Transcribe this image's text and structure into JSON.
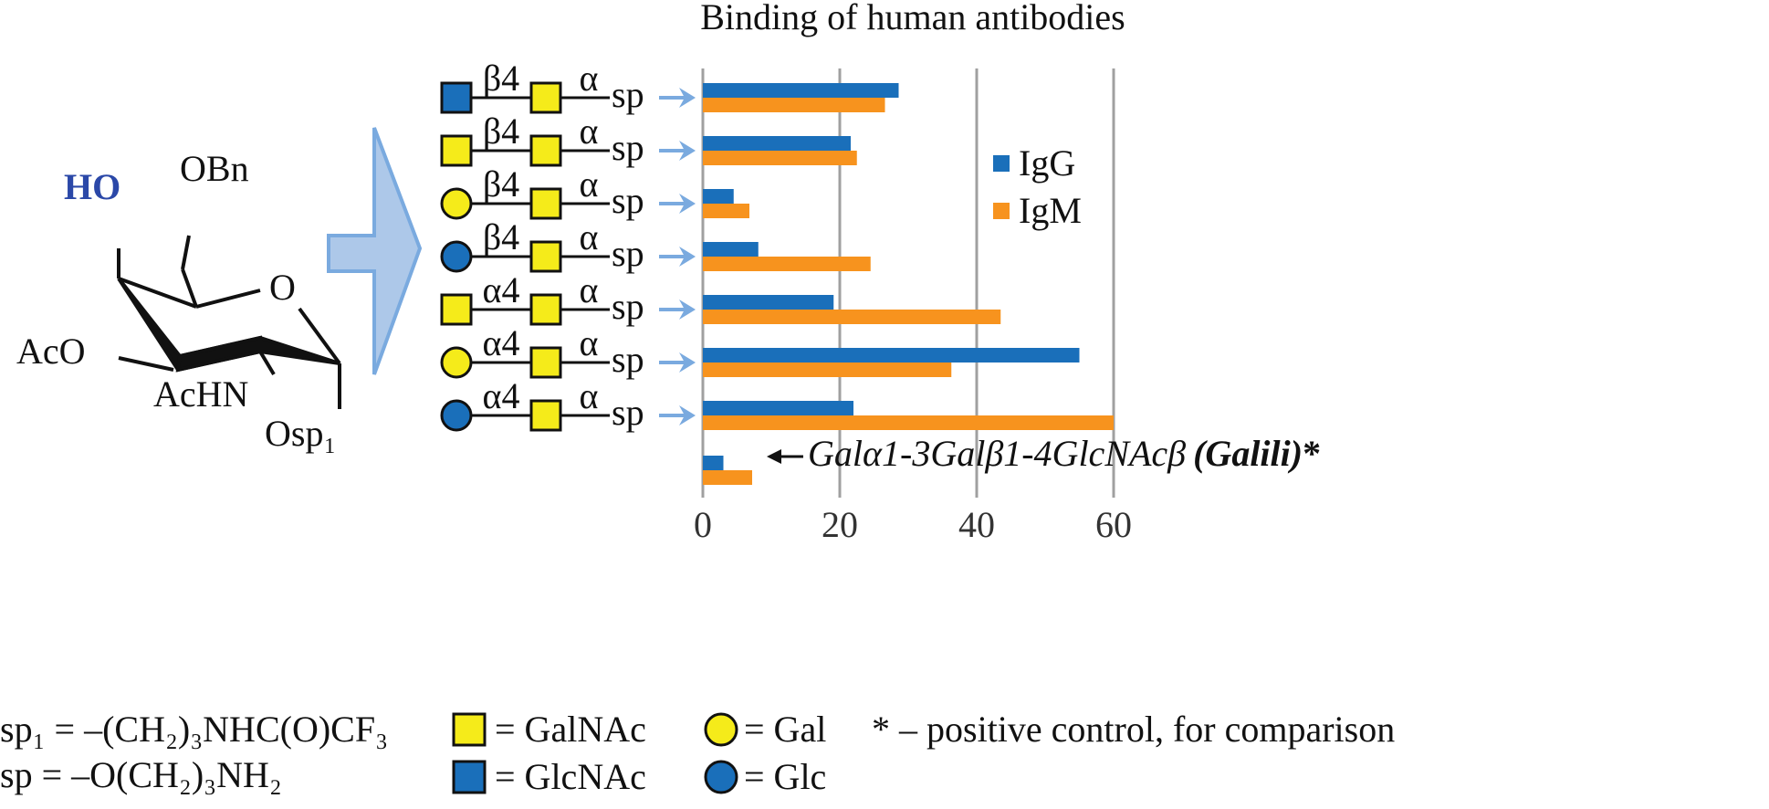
{
  "molecule": {
    "hydroxyl": "HO",
    "obn": "OBn",
    "ring_o": "O",
    "aco": "AcO",
    "achn": "AcHN",
    "osp": "Osp₁"
  },
  "colors": {
    "igg": "#1a6fba",
    "igm": "#f7931e",
    "galnac": "#f5eb1a",
    "glcnac": "#1a6fba",
    "arrow": "#7aaadf",
    "big_arrow": "#adc8e9",
    "hydroxyl": "#2b48a8",
    "grid": "#a0a0a0"
  },
  "chart_data": {
    "type": "bar",
    "orientation": "horizontal",
    "title": "Binding of human antibodies",
    "xlim": [
      0,
      60
    ],
    "xticks": [
      "0",
      "20",
      "40",
      "60"
    ],
    "grid": true,
    "legend_placement": "top-right",
    "categories": [
      {
        "first": "GlcNAc",
        "shape": "square",
        "first_color": "#1a6fba",
        "linkage": "β4",
        "anomer": "α",
        "spacer": "sp"
      },
      {
        "first": "GalNAc",
        "shape": "square",
        "first_color": "#f5eb1a",
        "linkage": "β4",
        "anomer": "α",
        "spacer": "sp"
      },
      {
        "first": "Gal",
        "shape": "circle",
        "first_color": "#f5eb1a",
        "linkage": "β4",
        "anomer": "α",
        "spacer": "sp"
      },
      {
        "first": "Glc",
        "shape": "circle",
        "first_color": "#1a6fba",
        "linkage": "β4",
        "anomer": "α",
        "spacer": "sp"
      },
      {
        "first": "GalNAc",
        "shape": "square",
        "first_color": "#f5eb1a",
        "linkage": "α4",
        "anomer": "α",
        "spacer": "sp"
      },
      {
        "first": "Gal",
        "shape": "circle",
        "first_color": "#f5eb1a",
        "linkage": "α4",
        "anomer": "α",
        "spacer": "sp"
      },
      {
        "first": "Glc",
        "shape": "circle",
        "first_color": "#1a6fba",
        "linkage": "α4",
        "anomer": "α",
        "spacer": "sp"
      },
      {
        "label": "Galα1-3Galβ1-4GlcNAcβ",
        "label_bold": "(Galili)",
        "label_suffix": "*"
      }
    ],
    "series": [
      {
        "name": "IgG",
        "color": "#1a6fba",
        "values": [
          28.6,
          21.6,
          4.5,
          8.1,
          19.1,
          55.0,
          22.0,
          3.0
        ]
      },
      {
        "name": "IgM",
        "color": "#f7931e",
        "values": [
          26.6,
          22.5,
          6.8,
          24.5,
          43.5,
          36.3,
          60.0,
          7.2
        ]
      }
    ]
  },
  "footer": {
    "sp1_def": "sp₁ = –(CH₂)₃NHC(O)CF₃",
    "sp_def": "sp  = –O(CH₂)₃NH₂",
    "galnac": "= GalNAc",
    "glcnac": "= GlcNAc",
    "gal": "= Gal",
    "glc": "= Glc",
    "note": "* – positive control, for comparison"
  }
}
